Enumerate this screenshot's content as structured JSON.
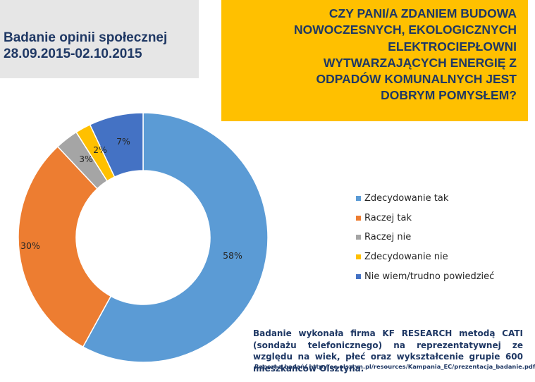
{
  "header": {
    "survey_line1": "Badanie opinii społecznej",
    "survey_line2": "28.09.2015-02.10.2015",
    "question_lines": [
      "CZY PANI/A ZDANIEM BUDOWA",
      "NOWOCZESNYCH, EKOLOGICZNYCH",
      "ELEKTROCIEPŁOWNI",
      "WYTWARZAJĄCYCH ENERGIĘ Z",
      "ODPADÓW KOMUNALNYCH JEST",
      "DOBRYM POMYSŁEM?"
    ]
  },
  "chart_data": {
    "type": "pie",
    "donut": true,
    "categories": [
      "Zdecydowanie tak",
      "Raczej tak",
      "Raczej nie",
      "Zdecydowanie nie",
      "Nie wiem/trudno powiedzieć"
    ],
    "values": [
      58,
      30,
      3,
      2,
      7
    ],
    "data_labels": [
      "58%",
      "30%",
      "3%",
      "2%",
      "7%"
    ],
    "colors": [
      "#5b9bd5",
      "#ed7d31",
      "#a5a5a5",
      "#ffc000",
      "#4472c4"
    ],
    "legend_position": "right"
  },
  "footer": {
    "note": "Badanie wykonała firma KF RESEARCH metodą CATI (sondażu telefonicznego) na reprezentatywnej ze względu na wiek, płeć oraz wykształcenie grupie 600 mieszkańców Olsztyna.",
    "source": "Raport z badań: http://ec.olsztyn.pl/resources/Kampania_EC/prezentacja_badanie.pdf"
  }
}
